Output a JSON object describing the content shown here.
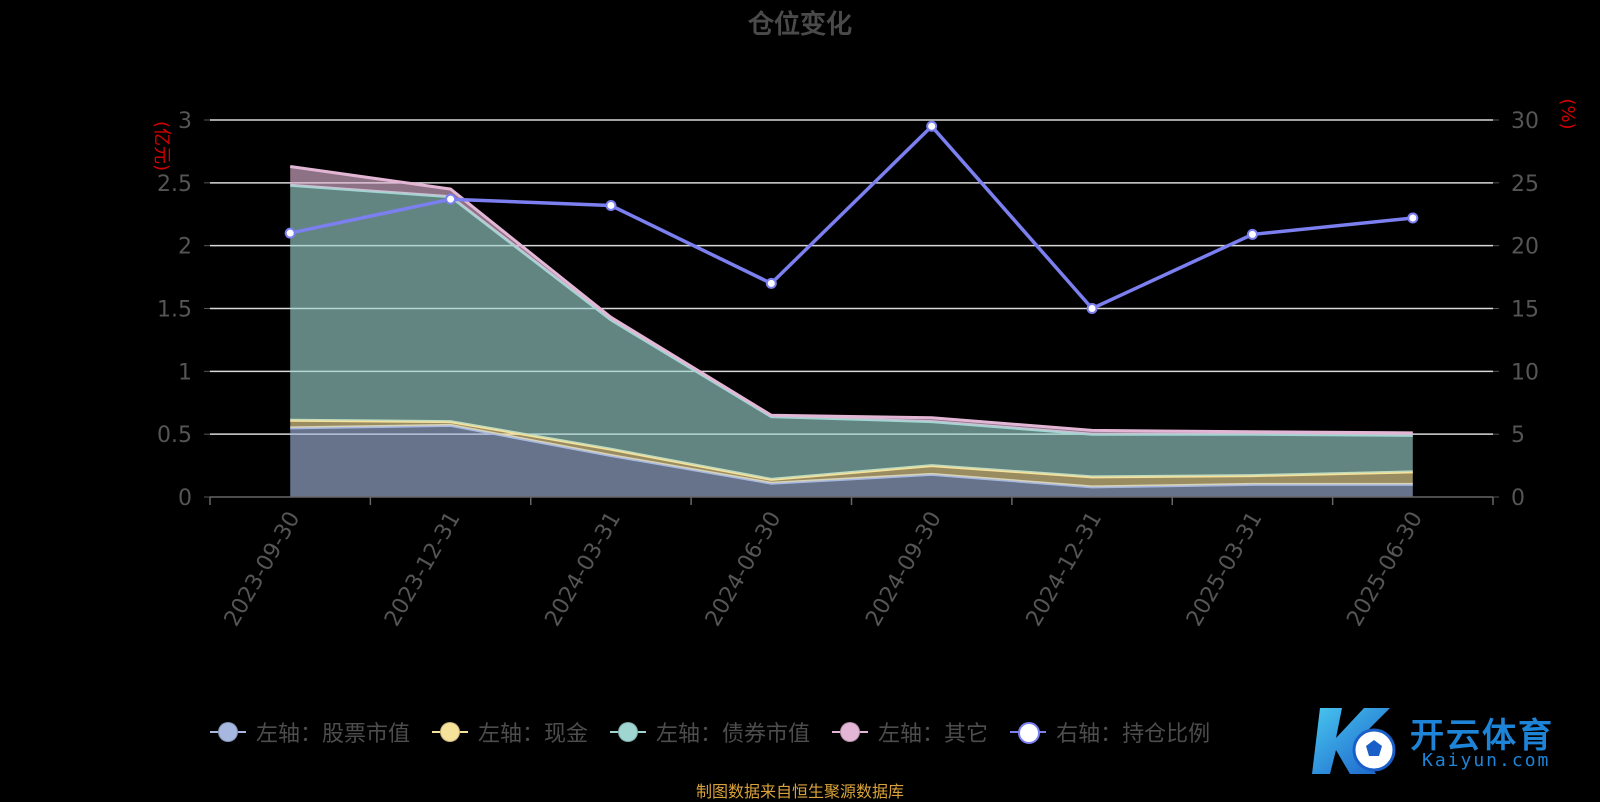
{
  "title": "仓位变化",
  "source_note": "制图数据来自恒生聚源数据库",
  "watermark": {
    "name": "开云体育",
    "sub": "Kaiyun.com"
  },
  "chart_data": {
    "type": "area",
    "title": "仓位变化",
    "categories": [
      "2023-09-30",
      "2023-12-31",
      "2024-03-31",
      "2024-06-30",
      "2024-09-30",
      "2024-12-31",
      "2025-03-31",
      "2025-06-30"
    ],
    "y_left": {
      "label": "(亿元)",
      "min": 0,
      "max": 3,
      "ticks": [
        "0",
        "0.5",
        "1",
        "1.5",
        "2",
        "2.5",
        "3"
      ]
    },
    "y_right": {
      "label": "(%)",
      "min": 0,
      "max": 30,
      "ticks": [
        "0",
        "5",
        "10",
        "15",
        "20",
        "25",
        "30"
      ]
    },
    "grid": true,
    "legend_position": "bottom",
    "stacked": true,
    "series": [
      {
        "name": "左轴：股票市值",
        "axis": "left",
        "type": "area",
        "color": "#a6b8e0",
        "values": [
          0.55,
          0.57,
          0.33,
          0.11,
          0.18,
          0.08,
          0.1,
          0.1
        ]
      },
      {
        "name": "左轴：现金",
        "axis": "left",
        "type": "area",
        "color": "#f7e29c",
        "values": [
          0.06,
          0.03,
          0.05,
          0.03,
          0.07,
          0.08,
          0.07,
          0.1
        ]
      },
      {
        "name": "左轴：债券市值",
        "axis": "left",
        "type": "area",
        "color": "#9fd6d2",
        "values": [
          1.87,
          1.79,
          1.03,
          0.5,
          0.35,
          0.34,
          0.33,
          0.29
        ]
      },
      {
        "name": "左轴：其它",
        "axis": "left",
        "type": "area",
        "color": "#e3b6d6",
        "values": [
          0.15,
          0.06,
          0.02,
          0.01,
          0.03,
          0.03,
          0.02,
          0.02
        ]
      },
      {
        "name": "右轴：持仓比例",
        "axis": "right",
        "type": "line",
        "color": "#7b7ff0",
        "values": [
          21.0,
          23.7,
          23.2,
          17.0,
          29.5,
          15.0,
          20.9,
          22.2
        ]
      }
    ]
  }
}
